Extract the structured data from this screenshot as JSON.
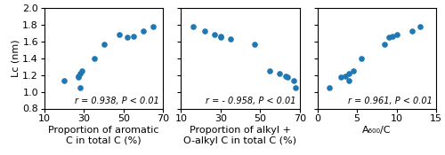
{
  "chart_data": [
    {
      "type": "scatter",
      "x": [
        20,
        27,
        27,
        28,
        28,
        29,
        35,
        40,
        48,
        52,
        55,
        60,
        65
      ],
      "y": [
        1.13,
        1.17,
        1.19,
        1.22,
        1.05,
        1.25,
        1.4,
        1.57,
        1.68,
        1.65,
        1.66,
        1.72,
        1.78
      ],
      "xlabel": "Proportion of aromatic C in total C (%)",
      "ylabel": "Lc (nm)",
      "annotation": "r = 0.938, P < 0.01",
      "xlim": [
        10,
        70
      ],
      "xticks": [
        10,
        30,
        50,
        70
      ],
      "ylim": [
        0.8,
        2.0
      ],
      "yticks": [
        0.8,
        1.0,
        1.2,
        1.4,
        1.6,
        1.8,
        2.0
      ],
      "marker": "o"
    },
    {
      "type": "scatter",
      "x": [
        16,
        22,
        27,
        30,
        30,
        35,
        47,
        55,
        60,
        63,
        64,
        67,
        68
      ],
      "y": [
        1.78,
        1.72,
        1.68,
        1.65,
        1.66,
        1.63,
        1.57,
        1.25,
        1.22,
        1.19,
        1.17,
        1.13,
        1.05
      ],
      "xlabel": "Proportion of alkyl + O-alkyl C in total C (%)",
      "annotation": "r = - 0.958, P < 0.01",
      "xlim": [
        10,
        70
      ],
      "xticks": [
        10,
        30,
        50,
        70
      ],
      "ylim": [
        0.8,
        2.0
      ],
      "yticks": [
        0.8,
        1.0,
        1.2,
        1.4,
        1.6,
        1.8,
        2.0
      ],
      "tick_labels": "x",
      "marker": "o"
    },
    {
      "type": "scatter",
      "x": [
        1.5,
        3.0,
        3.5,
        4.0,
        4.0,
        4.5,
        5.5,
        8.5,
        9.0,
        9.5,
        10.0,
        12.0,
        13.0
      ],
      "y": [
        1.05,
        1.17,
        1.19,
        1.22,
        1.13,
        1.25,
        1.4,
        1.57,
        1.65,
        1.66,
        1.68,
        1.72,
        1.78
      ],
      "xlabel": "A₆₀₀/C",
      "annotation": "r = 0.961, P < 0.01",
      "xlim": [
        0,
        15
      ],
      "xticks": [
        0,
        5,
        10,
        15
      ],
      "ylim": [
        0.8,
        2.0
      ],
      "yticks": [
        0.8,
        1.0,
        1.2,
        1.4,
        1.6,
        1.8,
        2.0
      ],
      "tick_labels": "x",
      "marker": "o"
    }
  ]
}
